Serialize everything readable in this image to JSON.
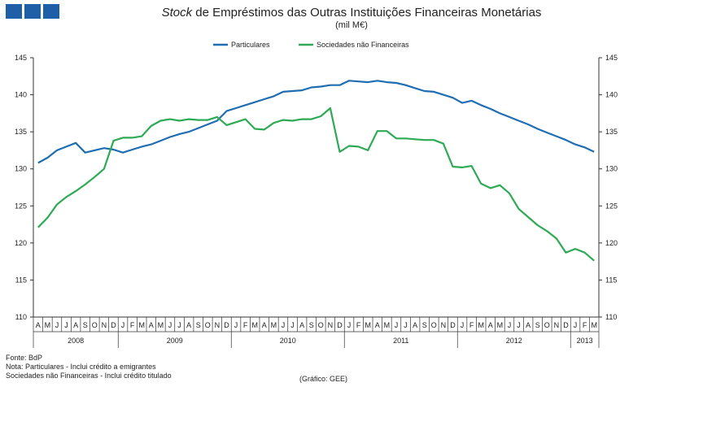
{
  "header": {
    "title_italic": "Stock",
    "title_rest": " de Empréstimos  das Outras Instituições Financeiras Monetárias",
    "subtitle": "(mil M€)"
  },
  "footer": {
    "source": "Fonte: BdP",
    "note1": "Nota: Particulares - Inclui crédito a emigrantes",
    "note2": "Sociedades não Financeiras - Inclui crédito titulado",
    "credit": "(Gráfico: GEE)"
  },
  "chart_data": {
    "type": "line",
    "title": "Stock de Empréstimos das Outras Instituições Financeiras Monetárias",
    "ylabel": "mil M€",
    "ylim": [
      110,
      145
    ],
    "yticks": [
      110,
      115,
      120,
      125,
      130,
      135,
      140,
      145
    ],
    "legend_position": "top-center",
    "month_labels": [
      "A",
      "M",
      "J",
      "J",
      "A",
      "S",
      "O",
      "N",
      "D",
      "J",
      "F",
      "M",
      "A",
      "M",
      "J",
      "J",
      "A",
      "S",
      "O",
      "N",
      "D",
      "J",
      "F",
      "M",
      "A",
      "M",
      "J",
      "J",
      "A",
      "S",
      "O",
      "N",
      "D",
      "J",
      "F",
      "M",
      "A",
      "M",
      "J",
      "J",
      "A",
      "S",
      "O",
      "N",
      "D",
      "J",
      "F",
      "M",
      "A",
      "M",
      "J",
      "J",
      "A",
      "S",
      "O",
      "N",
      "D",
      "J",
      "F",
      "M"
    ],
    "years": [
      {
        "label": "2008",
        "months": 9
      },
      {
        "label": "2009",
        "months": 12
      },
      {
        "label": "2010",
        "months": 12
      },
      {
        "label": "2011",
        "months": 12
      },
      {
        "label": "2012",
        "months": 12
      },
      {
        "label": "2013",
        "months": 3
      }
    ],
    "series": [
      {
        "name": "Particulares",
        "color": "#1f6db3",
        "values": [
          130.8,
          131.5,
          132.5,
          133.0,
          133.5,
          132.2,
          132.5,
          132.8,
          132.6,
          132.2,
          132.6,
          133.0,
          133.3,
          133.8,
          134.3,
          134.7,
          135.0,
          135.5,
          136.0,
          136.5,
          137.8,
          138.2,
          138.6,
          139.0,
          139.4,
          139.8,
          140.4,
          140.5,
          140.6,
          141.0,
          141.1,
          141.3,
          141.3,
          141.9,
          141.8,
          141.7,
          141.9,
          141.7,
          141.6,
          141.3,
          140.9,
          140.5,
          140.4,
          140.0,
          139.6,
          138.9,
          139.2,
          138.6,
          138.1,
          137.5,
          137.0,
          136.5,
          136.0,
          135.4,
          134.9,
          134.4,
          133.9,
          133.3,
          132.9,
          132.3
        ]
      },
      {
        "name": "Sociedades não Financeiras",
        "color": "#2eaa55",
        "values": [
          122.1,
          123.4,
          125.2,
          126.2,
          127.0,
          127.9,
          128.9,
          130.0,
          133.8,
          134.2,
          134.2,
          134.4,
          135.8,
          136.5,
          136.7,
          136.5,
          136.7,
          136.6,
          136.6,
          137.0,
          135.9,
          136.3,
          136.7,
          135.4,
          135.3,
          136.2,
          136.6,
          136.5,
          136.7,
          136.7,
          137.1,
          138.2,
          132.3,
          133.1,
          133.0,
          132.5,
          135.1,
          135.1,
          134.1,
          134.1,
          134.0,
          133.9,
          133.9,
          133.4,
          130.3,
          130.2,
          130.4,
          128.0,
          127.4,
          127.8,
          126.7,
          124.6,
          123.5,
          122.4,
          121.6,
          120.6,
          118.7,
          119.2,
          118.7,
          117.6
        ]
      }
    ]
  }
}
